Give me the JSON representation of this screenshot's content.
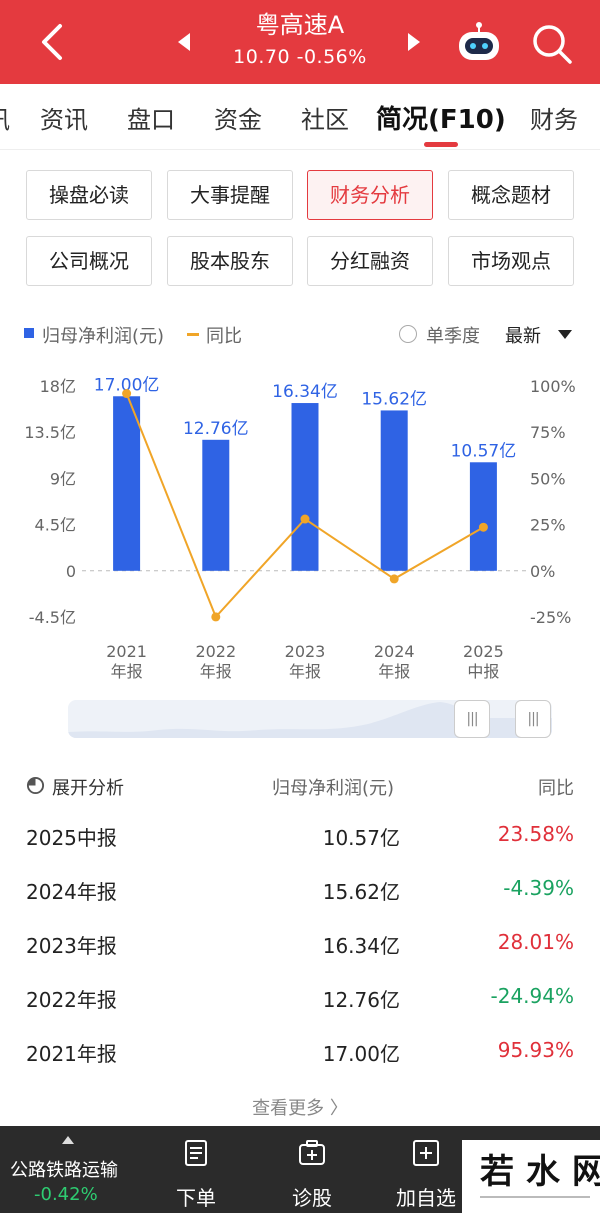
{
  "header": {
    "title": "粤高速A",
    "quote": "10.70  -0.56%"
  },
  "tabs": {
    "partial_left": "讯",
    "items": [
      "资讯",
      "盘口",
      "资金",
      "社区",
      "简况(F10)",
      "财务"
    ],
    "active_index": 4
  },
  "sub_buttons": [
    "操盘必读",
    "大事提醒",
    "财务分析",
    "概念题材",
    "公司概况",
    "股本股东",
    "分红融资",
    "市场观点"
  ],
  "sub_active": "财务分析",
  "legend": {
    "series1": "归母净利润(元)",
    "series2": "同比",
    "quarter_toggle": "单季度",
    "sort": "最新"
  },
  "colors": {
    "brand_red": "#e43a3f",
    "bar_blue": "#2f63e4",
    "line_orange": "#f0a528",
    "up_red": "#e0303a",
    "down_green": "#1aa260"
  },
  "chart_data": {
    "type": "bar",
    "categories": [
      "2021年报",
      "2022年报",
      "2023年报",
      "2024年报",
      "2025中报"
    ],
    "category_lines": [
      [
        "2021",
        "年报"
      ],
      [
        "2022",
        "年报"
      ],
      [
        "2023",
        "年报"
      ],
      [
        "2024",
        "年报"
      ],
      [
        "2025",
        "中报"
      ]
    ],
    "series": [
      {
        "name": "归母净利润(元)",
        "type": "bar",
        "unit": "亿",
        "values": [
          17.0,
          12.76,
          16.34,
          15.62,
          10.57
        ],
        "labels": [
          "17.00亿",
          "12.76亿",
          "16.34亿",
          "15.62亿",
          "10.57亿"
        ]
      },
      {
        "name": "同比",
        "type": "line",
        "unit": "%",
        "values": [
          95.93,
          -24.94,
          28.01,
          -4.39,
          23.58
        ]
      }
    ],
    "y_left": {
      "ylim": [
        -4.5,
        18
      ],
      "ticks": [
        18,
        13.5,
        9,
        4.5,
        0,
        -4.5
      ],
      "tick_labels": [
        "18亿",
        "13.5亿",
        "9亿",
        "4.5亿",
        "0",
        "-4.5亿"
      ]
    },
    "y_right": {
      "ylim": [
        -25,
        100
      ],
      "ticks": [
        100,
        75,
        50,
        25,
        0,
        -25
      ],
      "tick_labels": [
        "100%",
        "75%",
        "50%",
        "25%",
        "0%",
        "-25%"
      ]
    },
    "grid": "dashed zero line"
  },
  "table": {
    "header_expand": "展开分析",
    "header_value": "归母净利润(元)",
    "header_yoy": "同比",
    "rows": [
      {
        "period": "2025中报",
        "value": "10.57亿",
        "yoy": "23.58%"
      },
      {
        "period": "2024年报",
        "value": "15.62亿",
        "yoy": "-4.39%"
      },
      {
        "period": "2023年报",
        "value": "16.34亿",
        "yoy": "28.01%"
      },
      {
        "period": "2022年报",
        "value": "12.76亿",
        "yoy": "-24.94%"
      },
      {
        "period": "2021年报",
        "value": "17.00亿",
        "yoy": "95.93%"
      }
    ],
    "more": "查看更多 〉"
  },
  "bottom_bar": {
    "sector_name": "公路铁路运输",
    "sector_change": "-0.42%",
    "items": [
      {
        "label": "下单",
        "icon": "order-doc-icon"
      },
      {
        "label": "诊股",
        "icon": "diagnose-icon"
      },
      {
        "label": "加自选",
        "icon": "add-watchlist-icon"
      },
      {
        "label": "",
        "icon": "more-menu-icon"
      }
    ]
  },
  "watermark": "若水网"
}
